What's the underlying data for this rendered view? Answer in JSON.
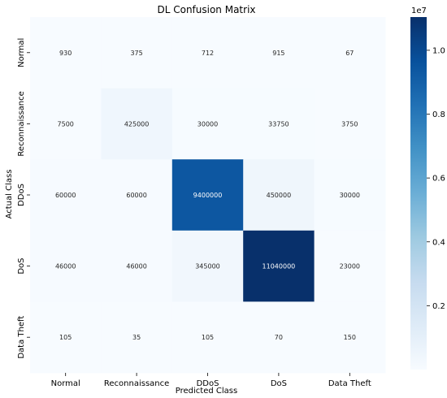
{
  "chart_data": {
    "type": "heatmap",
    "title": "DL Confusion Matrix",
    "xlabel": "Predicted Class",
    "ylabel": "Actual Class",
    "x_categories": [
      "Normal",
      "Reconnaissance",
      "DDoS",
      "DoS",
      "Data Theft"
    ],
    "y_categories": [
      "Normal",
      "Reconnaissance",
      "DDoS",
      "DoS",
      "Data Theft"
    ],
    "values": [
      [
        930,
        375,
        712,
        915,
        67
      ],
      [
        7500,
        425000,
        30000,
        33750,
        3750
      ],
      [
        60000,
        60000,
        9400000,
        450000,
        30000
      ],
      [
        46000,
        46000,
        345000,
        11040000,
        23000
      ],
      [
        105,
        35,
        105,
        70,
        150
      ]
    ],
    "colormap": "Blues",
    "colorbar": {
      "range": [
        0,
        11040000
      ],
      "ticks": [
        0.2,
        0.4,
        0.6,
        0.8,
        1.0
      ],
      "tick_labels": [
        "0.2",
        "0.4",
        "0.6",
        "0.8",
        "1.0"
      ],
      "multiplier_label": "1e7"
    }
  }
}
